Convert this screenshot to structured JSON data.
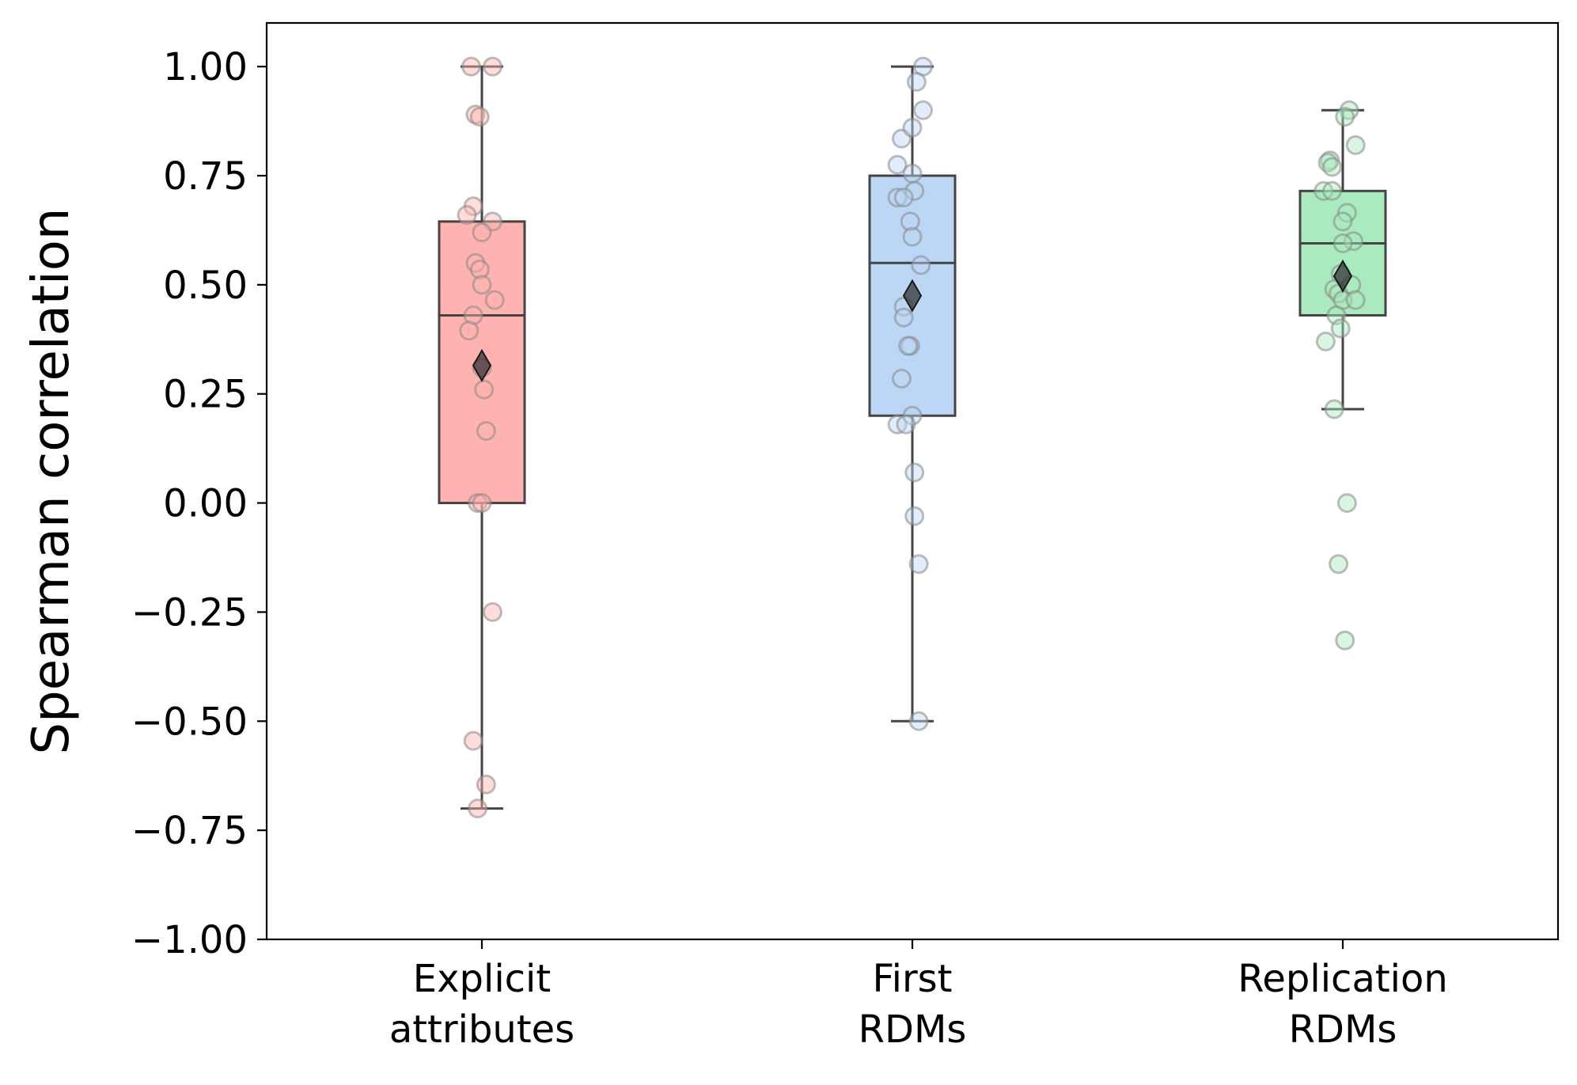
{
  "chart_data": {
    "type": "box",
    "title": "",
    "xlabel": "",
    "ylabel": "Spearman correlation",
    "ylim": [
      -1.0,
      1.1
    ],
    "yticks": [
      1.0,
      0.75,
      0.5,
      0.25,
      0.0,
      -0.25,
      -0.5,
      -0.75,
      -1.0
    ],
    "ytick_labels": [
      "1.00",
      "0.75",
      "0.50",
      "0.25",
      "0.00",
      "−0.25",
      "−0.50",
      "−0.75",
      "−1.00"
    ],
    "grid": false,
    "legend": "none",
    "mean_marker": "diamond",
    "categories": [
      {
        "lines": [
          "Explicit",
          "attributes"
        ],
        "color": "#ffb3b0",
        "box": {
          "whisker_low": -0.7,
          "q1": 0.0,
          "median": 0.43,
          "q3": 0.645,
          "whisker_high": 1.0,
          "mean": 0.315
        },
        "points": [
          [
            -0.05,
            1.0
          ],
          [
            0.05,
            1.0
          ],
          [
            -0.03,
            0.89
          ],
          [
            -0.01,
            0.885
          ],
          [
            -0.04,
            0.68
          ],
          [
            -0.07,
            0.66
          ],
          [
            0.05,
            0.645
          ],
          [
            0.0,
            0.62
          ],
          [
            -0.03,
            0.55
          ],
          [
            -0.01,
            0.535
          ],
          [
            0.0,
            0.5
          ],
          [
            0.06,
            0.465
          ],
          [
            -0.04,
            0.43
          ],
          [
            -0.06,
            0.395
          ],
          [
            0.0,
            0.31
          ],
          [
            0.01,
            0.26
          ],
          [
            0.02,
            0.165
          ],
          [
            -0.02,
            0.0
          ],
          [
            0.0,
            0.0
          ],
          [
            0.05,
            -0.25
          ],
          [
            -0.04,
            -0.545
          ],
          [
            0.02,
            -0.645
          ],
          [
            -0.02,
            -0.7
          ]
        ]
      },
      {
        "lines": [
          "First",
          "RDMs"
        ],
        "color": "#bcd7f5",
        "box": {
          "whisker_low": -0.5,
          "q1": 0.2,
          "median": 0.55,
          "q3": 0.75,
          "whisker_high": 1.0,
          "mean": 0.475
        },
        "points": [
          [
            0.05,
            1.0
          ],
          [
            0.02,
            0.965
          ],
          [
            0.05,
            0.9
          ],
          [
            -0.05,
            0.835
          ],
          [
            0.0,
            0.86
          ],
          [
            -0.07,
            0.775
          ],
          [
            0.0,
            0.755
          ],
          [
            0.01,
            0.715
          ],
          [
            -0.07,
            0.7
          ],
          [
            -0.04,
            0.7
          ],
          [
            -0.01,
            0.645
          ],
          [
            0.0,
            0.61
          ],
          [
            0.04,
            0.545
          ],
          [
            -0.04,
            0.45
          ],
          [
            -0.04,
            0.425
          ],
          [
            -0.01,
            0.36
          ],
          [
            -0.02,
            0.36
          ],
          [
            -0.05,
            0.285
          ],
          [
            0.0,
            0.2
          ],
          [
            -0.07,
            0.18
          ],
          [
            -0.03,
            0.18
          ],
          [
            0.01,
            0.07
          ],
          [
            0.01,
            -0.03
          ],
          [
            0.03,
            -0.14
          ],
          [
            0.03,
            -0.5
          ]
        ]
      },
      {
        "lines": [
          "Replication",
          "RDMs"
        ],
        "color": "#a9ebbe",
        "box": {
          "whisker_low": 0.215,
          "q1": 0.43,
          "median": 0.595,
          "q3": 0.715,
          "whisker_high": 0.9,
          "mean": 0.52
        },
        "points": [
          [
            0.03,
            0.9
          ],
          [
            0.01,
            0.885
          ],
          [
            0.06,
            0.82
          ],
          [
            -0.06,
            0.785
          ],
          [
            -0.07,
            0.78
          ],
          [
            -0.05,
            0.77
          ],
          [
            -0.09,
            0.715
          ],
          [
            -0.05,
            0.715
          ],
          [
            0.02,
            0.665
          ],
          [
            0.0,
            0.645
          ],
          [
            0.05,
            0.6
          ],
          [
            0.0,
            0.595
          ],
          [
            -0.01,
            0.525
          ],
          [
            0.04,
            0.5
          ],
          [
            -0.04,
            0.49
          ],
          [
            -0.02,
            0.48
          ],
          [
            0.0,
            0.465
          ],
          [
            0.06,
            0.465
          ],
          [
            -0.03,
            0.43
          ],
          [
            -0.01,
            0.4
          ],
          [
            -0.08,
            0.37
          ],
          [
            -0.04,
            0.215
          ],
          [
            0.02,
            0.0
          ],
          [
            -0.02,
            -0.14
          ],
          [
            0.01,
            -0.315
          ]
        ]
      }
    ]
  }
}
